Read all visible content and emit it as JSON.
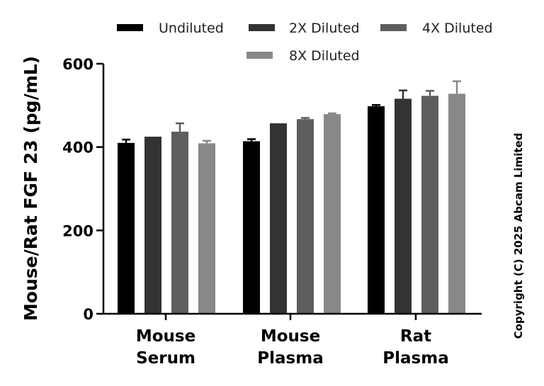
{
  "chart_data": {
    "type": "bar",
    "title": "",
    "xlabel": "",
    "ylabel": "Mouse/Rat FGF 23 (pg/mL)",
    "ylim": [
      0,
      600
    ],
    "yticks": [
      0,
      200,
      400,
      600
    ],
    "ytick_labels": [
      "0",
      "200",
      "400",
      "600"
    ],
    "categories": [
      {
        "line1": "Mouse",
        "line2": "Serum"
      },
      {
        "line1": "Mouse",
        "line2": "Plasma"
      },
      {
        "line1": "Rat",
        "line2": "Plasma"
      }
    ],
    "series": [
      {
        "name": "Undiluted",
        "color": "#000000",
        "values": [
          410,
          414,
          498
        ],
        "errors": [
          8,
          5,
          3
        ]
      },
      {
        "name": "2X Diluted",
        "color": "#333333",
        "values": [
          425,
          457,
          516
        ],
        "errors": [
          0,
          0,
          20
        ]
      },
      {
        "name": "4X Diluted",
        "color": "#5e5e5e",
        "values": [
          437,
          467,
          523
        ],
        "errors": [
          20,
          3,
          12
        ]
      },
      {
        "name": "8X Diluted",
        "color": "#888888",
        "values": [
          409,
          479,
          528
        ],
        "errors": [
          6,
          2,
          30
        ]
      }
    ],
    "legend_position": "top",
    "grid": false
  },
  "copyright": "Copyright (C) 2025 Abcam Limited"
}
